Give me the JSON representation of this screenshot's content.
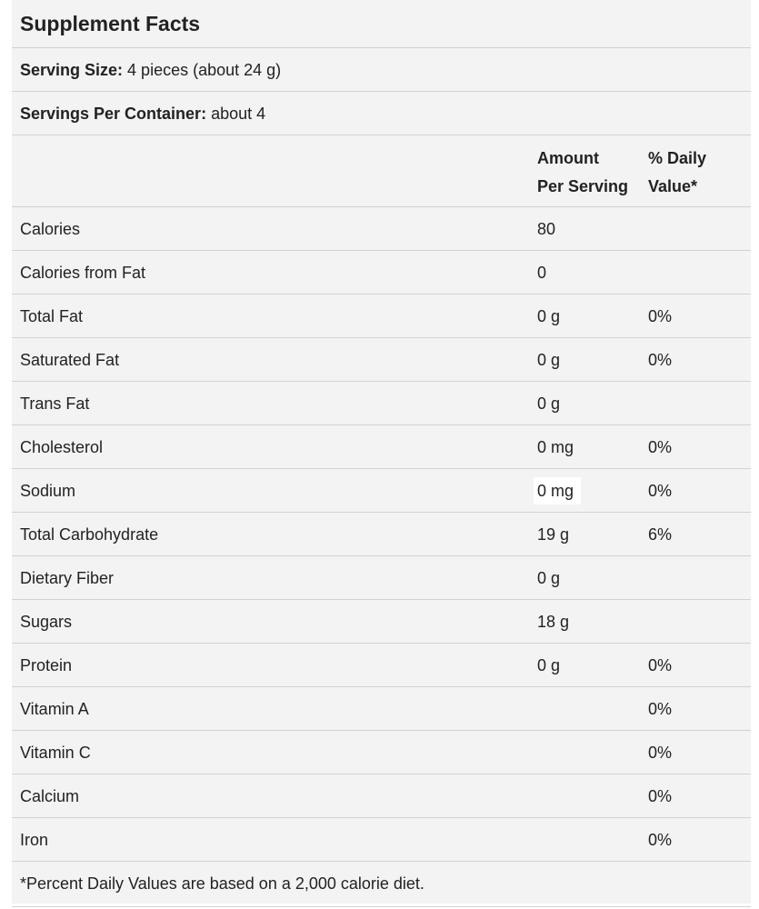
{
  "title": "Supplement Facts",
  "serving_size": {
    "label": "Serving Size:",
    "value": "4 pieces (about 24 g)"
  },
  "servings_per_container": {
    "label": "Servings Per Container:",
    "value": "about 4"
  },
  "header": {
    "amount": [
      "Amount",
      "Per Serving"
    ],
    "daily_value": [
      "% Daily",
      "Value*"
    ]
  },
  "rows": [
    [
      "Calories",
      "80",
      null
    ],
    [
      "Calories from Fat",
      "0",
      null
    ],
    [
      "Total Fat",
      "0 g",
      "0%"
    ],
    [
      "Saturated Fat",
      "0 g",
      "0%"
    ],
    [
      "Trans Fat",
      "0 g",
      null
    ],
    [
      "Cholesterol",
      "0 mg",
      "0%"
    ],
    [
      "Sodium",
      "0 mg",
      "0%"
    ],
    [
      "Total Carbohydrate",
      "19 g",
      "6%"
    ],
    [
      "Dietary Fiber",
      "0 g",
      null
    ],
    [
      "Sugars",
      "18 g",
      null
    ],
    [
      "Protein",
      "0 g",
      "0%"
    ],
    [
      "Vitamin A",
      null,
      "0%"
    ],
    [
      "Vitamin C",
      null,
      "0%"
    ],
    [
      "Calcium",
      null,
      "0%"
    ],
    [
      "Iron",
      null,
      "0%"
    ]
  ],
  "footnote": "*Percent Daily Values are based on a 2,000 calorie diet."
}
